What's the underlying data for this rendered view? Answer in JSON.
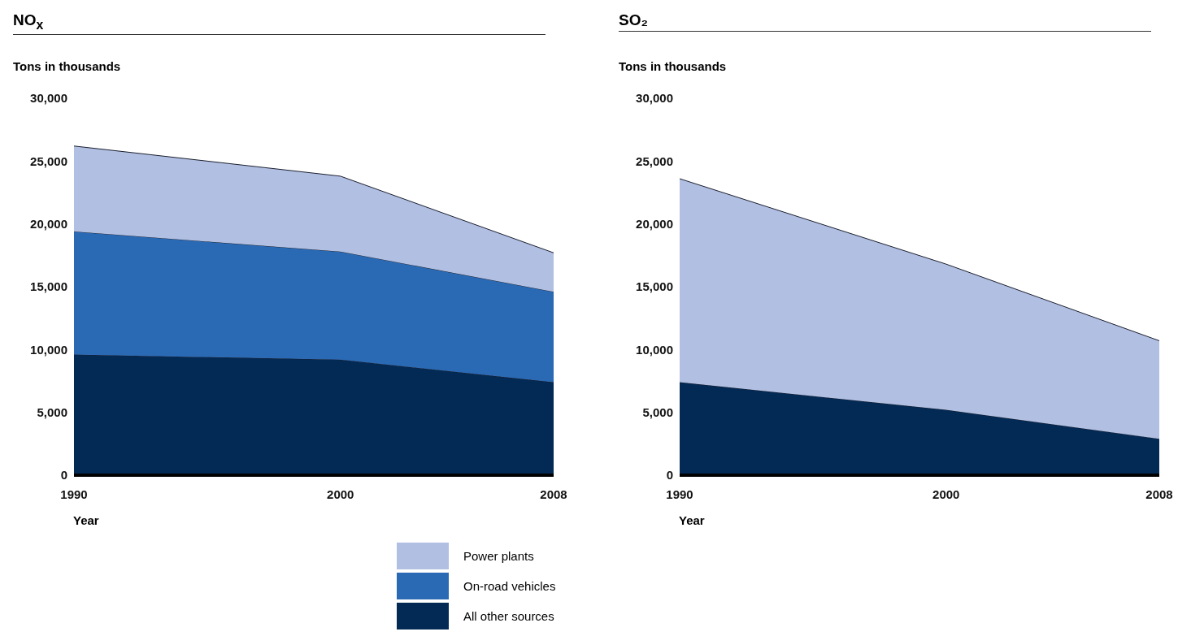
{
  "chart_data": [
    {
      "type": "area",
      "title": "NO$_{x}$",
      "ylabel": "Tons in thousands",
      "xlabel": "Year",
      "x": [
        1990,
        2000,
        2008
      ],
      "stacked": true,
      "xlim": [
        1990,
        2008
      ],
      "xticks": [
        1990,
        2000,
        2008
      ],
      "ylim": [
        0,
        30000
      ],
      "yticks": [
        {
          "value": 0,
          "label": "0"
        },
        {
          "value": 5000,
          "label": "5,000"
        },
        {
          "value": 10000,
          "label": "10,000"
        },
        {
          "value": 15000,
          "label": "15,000"
        },
        {
          "value": 20000,
          "label": "20,000"
        },
        {
          "value": 25000,
          "label": "25,000"
        },
        {
          "value": 30000,
          "label": "30,000"
        }
      ],
      "grid": false,
      "legend": "bottom",
      "series": [
        {
          "name": "All other sources",
          "color": "#032a55",
          "values": [
            9600,
            9200,
            7400
          ]
        },
        {
          "name": "On-road vehicles",
          "color": "#2a6ab5",
          "values": [
            9800,
            8600,
            7200
          ]
        },
        {
          "name": "Power plants",
          "color": "#b0bfe2",
          "values": [
            6800,
            6000,
            3100
          ]
        }
      ]
    },
    {
      "type": "area",
      "title": "SO₂",
      "ylabel": "Tons in thousands",
      "xlabel": "Year",
      "x": [
        1990,
        2000,
        2008
      ],
      "stacked": true,
      "xlim": [
        1990,
        2008
      ],
      "xticks": [
        1990,
        2000,
        2008
      ],
      "ylim": [
        0,
        30000
      ],
      "yticks": [
        {
          "value": 0,
          "label": "0"
        },
        {
          "value": 5000,
          "label": "5,000"
        },
        {
          "value": 10000,
          "label": "10,000"
        },
        {
          "value": 15000,
          "label": "15,000"
        },
        {
          "value": 20000,
          "label": "20,000"
        },
        {
          "value": 25000,
          "label": "25,000"
        },
        {
          "value": 30000,
          "label": "30,000"
        }
      ],
      "grid": false,
      "series": [
        {
          "color": "#032a55",
          "values": [
            7400,
            5200,
            2900
          ]
        },
        {
          "color": "#b0bfe2",
          "values": [
            16200,
            11600,
            7800
          ]
        }
      ]
    }
  ]
}
